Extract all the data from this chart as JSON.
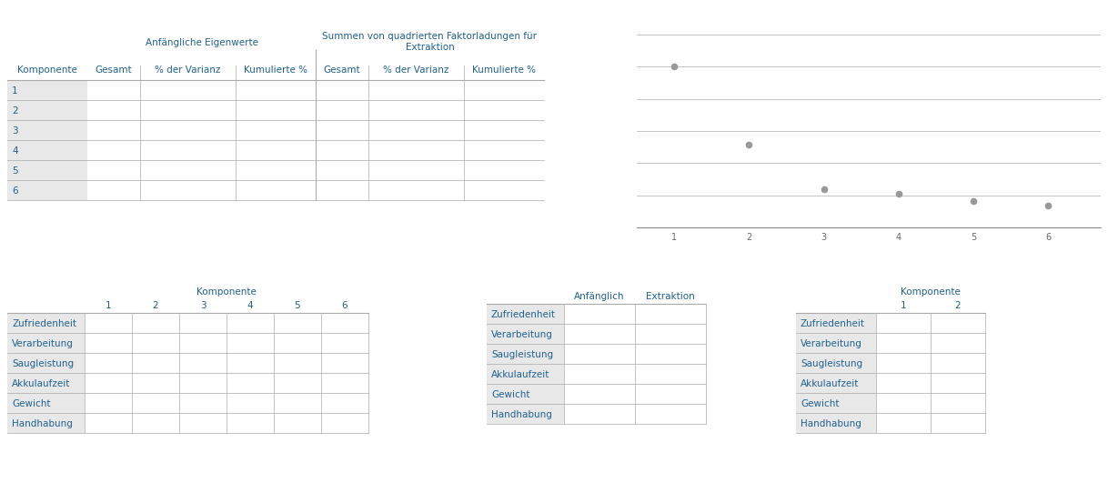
{
  "bg_color": "#ffffff",
  "gray_bg": "#e8e8e8",
  "line_color": "#aaaaaa",
  "header_color": "#1f618d",
  "table1_title1": "Anfängliche Eigenwerte",
  "table1_title2": "Summen von quadrierten Faktorladungen für\nExtraktion",
  "table1_col_headers": [
    "Komponente",
    "Gesamt",
    "% der Varianz",
    "Kumulierte %",
    "Gesamt",
    "% der Varianz",
    "Kumulierte %"
  ],
  "table1_rows": [
    "1",
    "2",
    "3",
    "4",
    "5",
    "6"
  ],
  "scree_x": [
    1,
    2,
    3,
    4,
    5,
    6
  ],
  "scree_y": [
    3.0,
    1.55,
    0.72,
    0.62,
    0.5,
    0.4
  ],
  "table2_title": "Komponente",
  "table2_col_headers": [
    "",
    "1",
    "2",
    "3",
    "4",
    "5",
    "6"
  ],
  "table2_rows": [
    "Zufriedenheit",
    "Verarbeitung",
    "Saugleistung",
    "Akkulaufzeit",
    "Gewicht",
    "Handhabung"
  ],
  "table3_col_headers": [
    "",
    "Anfänglich",
    "Extraktion"
  ],
  "table3_rows": [
    "Zufriedenheit",
    "Verarbeitung",
    "Saugleistung",
    "Akkulaufzeit",
    "Gewicht",
    "Handhabung"
  ],
  "table4_title": "Komponente",
  "table4_col_headers": [
    "",
    "1",
    "2"
  ],
  "table4_rows": [
    "Zufriedenheit",
    "Verarbeitung",
    "Saugleistung",
    "Akkulaufzeit",
    "Gewicht",
    "Handhabung"
  ]
}
